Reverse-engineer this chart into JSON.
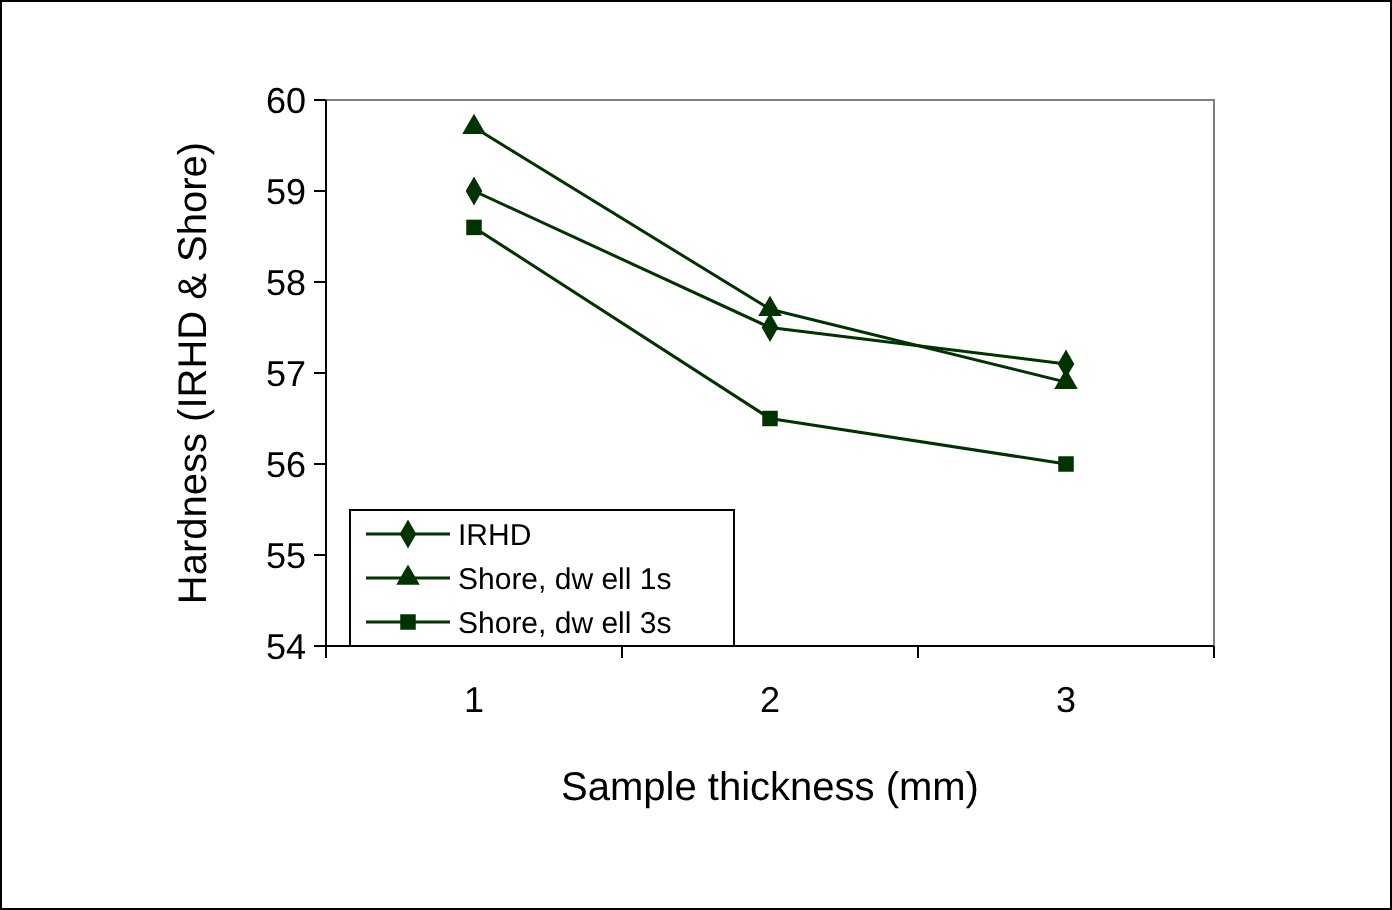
{
  "chart_data": {
    "type": "line",
    "xlabel": "Sample thickness (mm)",
    "ylabel": "Hardness (IRHD & Shore)",
    "categories": [
      "1",
      "2",
      "3"
    ],
    "ylim": [
      54,
      60
    ],
    "yticks": [
      54,
      55,
      56,
      57,
      58,
      59,
      60
    ],
    "legend": "bottom left",
    "grid": false,
    "series": [
      {
        "name": "IRHD",
        "color": "#003300",
        "marker": "diamond",
        "values": [
          59.0,
          57.5,
          57.1
        ]
      },
      {
        "name": "Shore, dw ell 1s",
        "color": "#003300",
        "marker": "triangle",
        "values": [
          59.7,
          57.7,
          56.9
        ]
      },
      {
        "name": "Shore, dw ell 3s",
        "color": "#003300",
        "marker": "square",
        "values": [
          58.6,
          56.5,
          56.0
        ]
      }
    ]
  }
}
